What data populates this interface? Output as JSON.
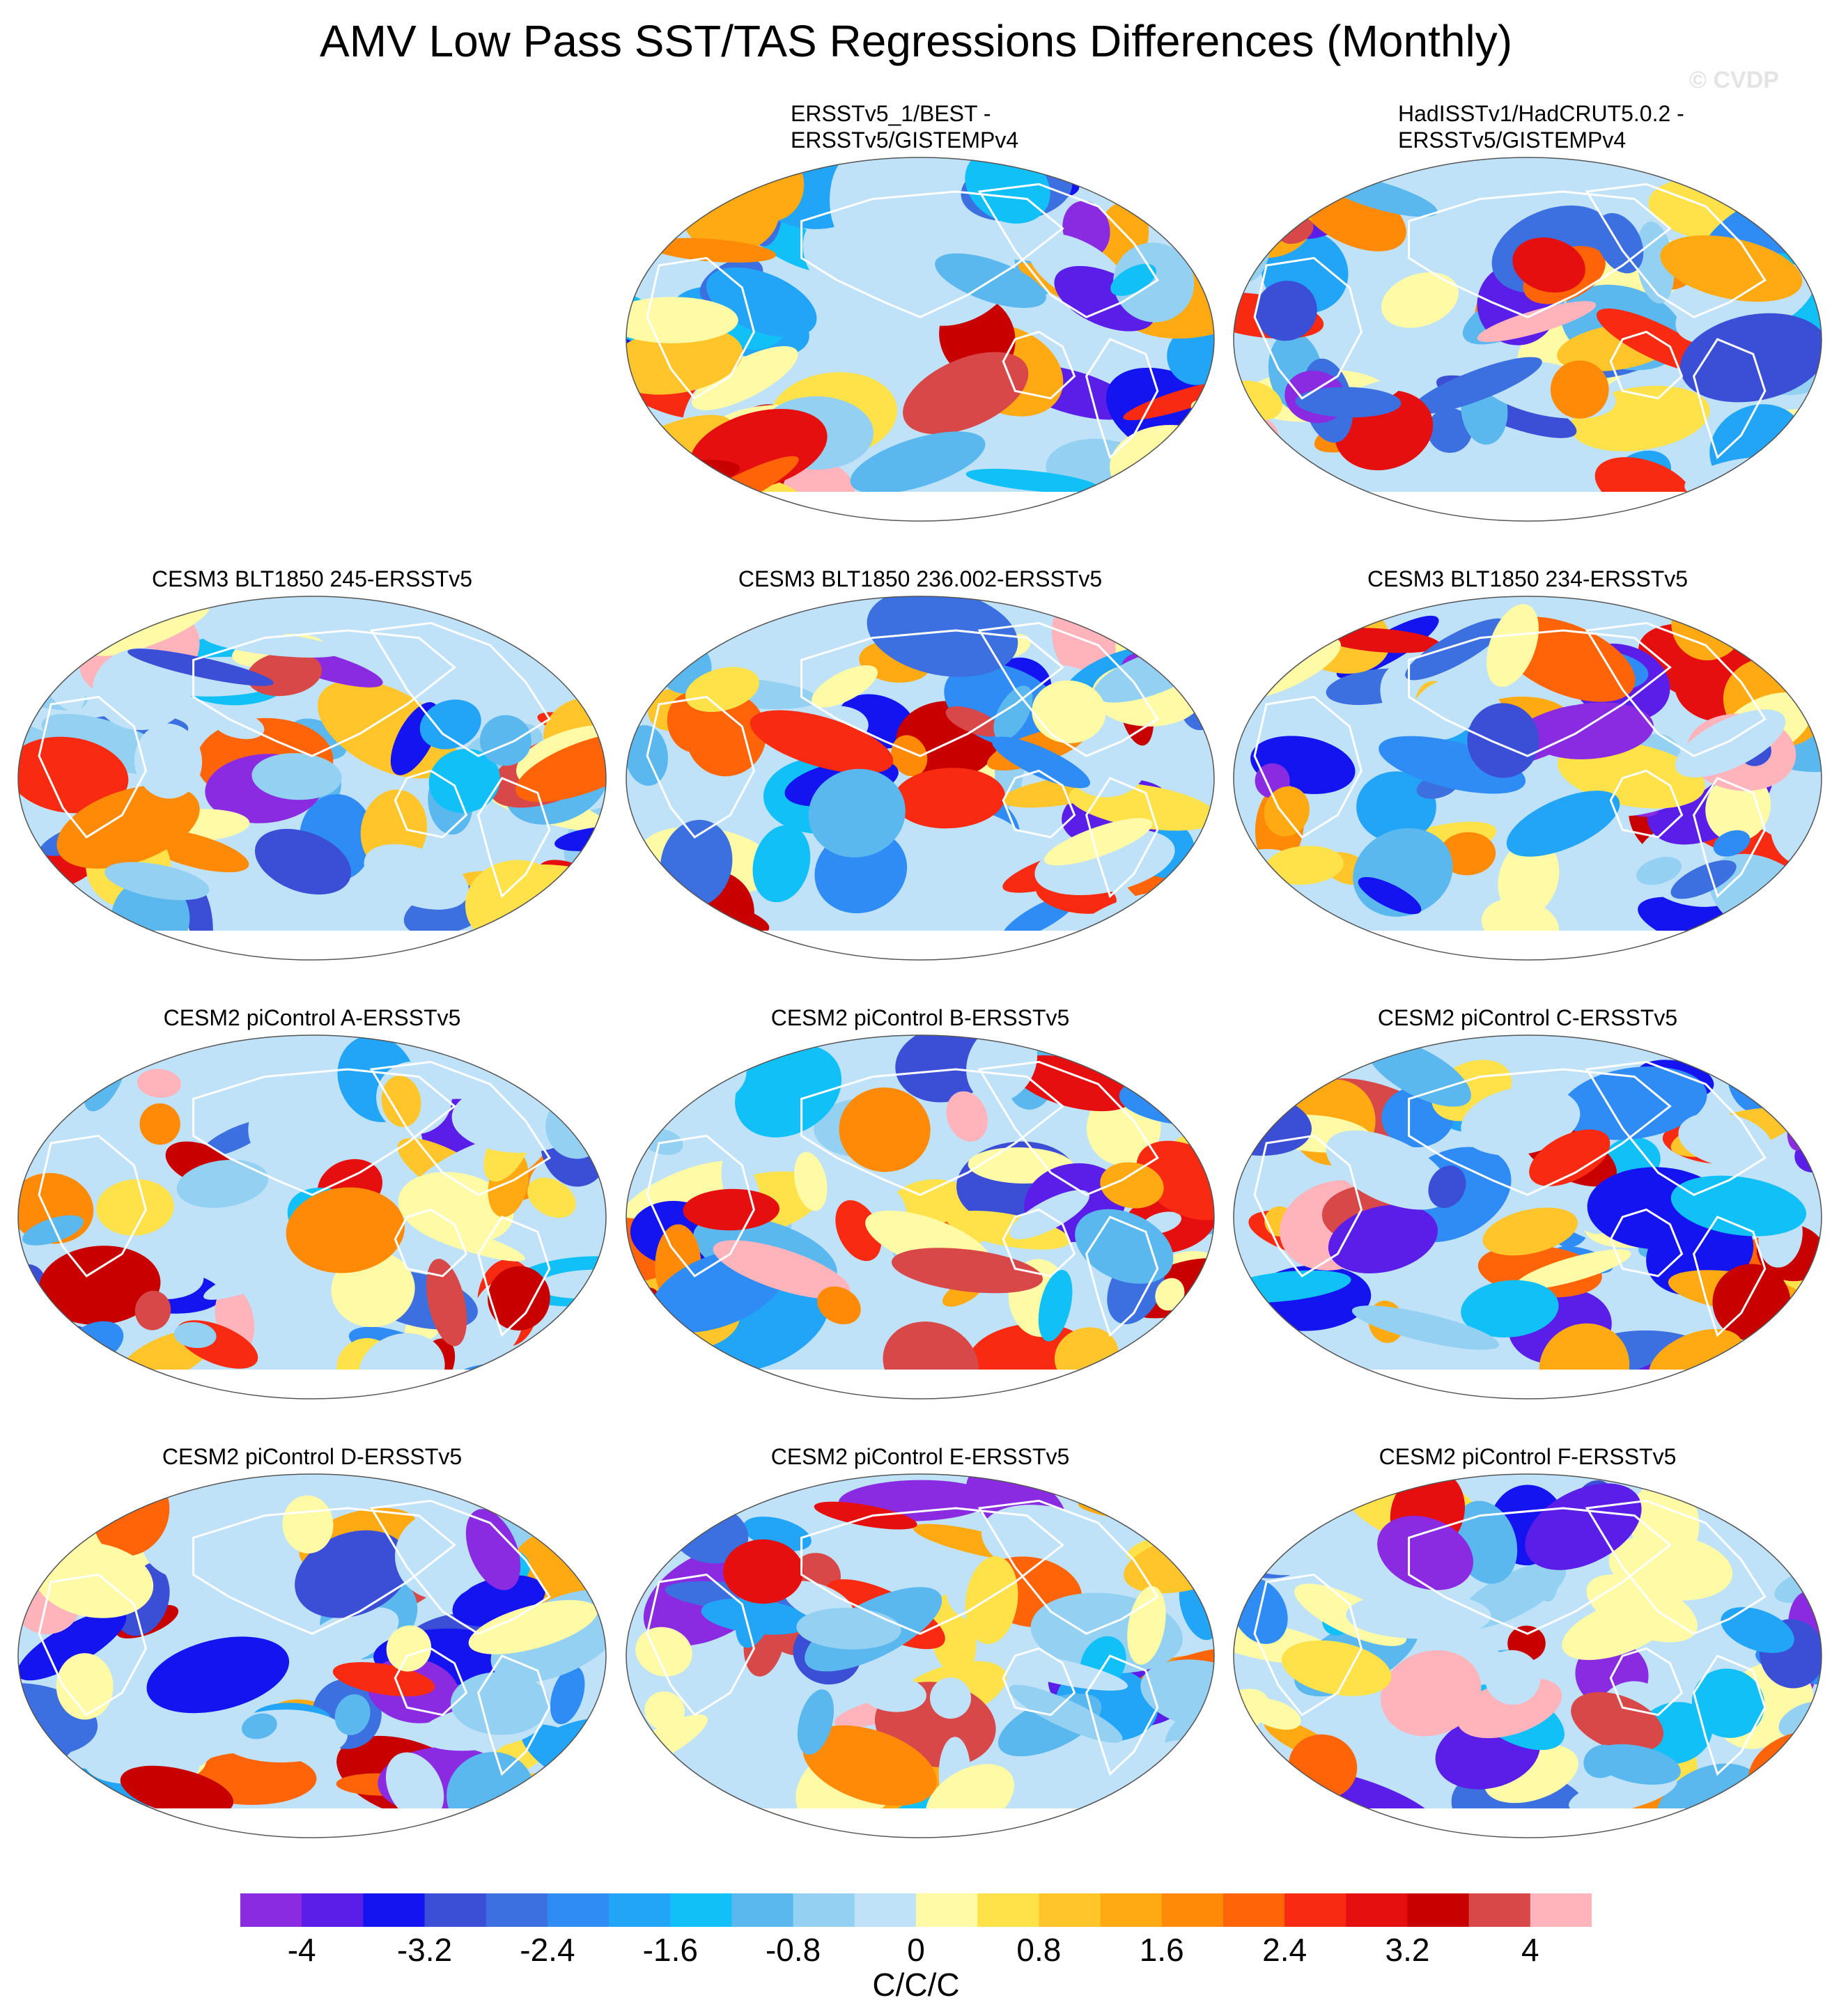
{
  "header": {
    "title": "AMV Low Pass SST/TAS Regressions Differences (Monthly)",
    "watermark": "© CVDP"
  },
  "chart_data": {
    "type": "heatmap",
    "projection": "robinson global map",
    "legend_position": "bottom",
    "panels": [
      {
        "title_lines": [
          "ERSSTv5_1/BEST -",
          "ERSSTv5/GISTEMPv4"
        ]
      },
      {
        "title_lines": [
          "HadISSTv1/HadCRUT5.0.2 -",
          "ERSSTv5/GISTEMPv4"
        ]
      },
      {
        "title_lines": [
          "CESM3 BLT1850 245-ERSSTv5"
        ]
      },
      {
        "title_lines": [
          "CESM3 BLT1850 236.002-ERSSTv5"
        ]
      },
      {
        "title_lines": [
          "CESM3 BLT1850 234-ERSSTv5"
        ]
      },
      {
        "title_lines": [
          "CESM2 piControl A-ERSSTv5"
        ]
      },
      {
        "title_lines": [
          "CESM2 piControl B-ERSSTv5"
        ]
      },
      {
        "title_lines": [
          "CESM2 piControl C-ERSSTv5"
        ]
      },
      {
        "title_lines": [
          "CESM2 piControl D-ERSSTv5"
        ]
      },
      {
        "title_lines": [
          "CESM2 piControl E-ERSSTv5"
        ]
      },
      {
        "title_lines": [
          "CESM2 piControl F-ERSSTv5"
        ]
      }
    ],
    "colorbar": {
      "units": "C/C/C",
      "range": [
        -4.4,
        4.4
      ],
      "bin_width": 0.4,
      "tick_labels": [
        "-4",
        "-3.2",
        "-2.4",
        "-1.6",
        "-0.8",
        "0",
        "0.8",
        "1.6",
        "2.4",
        "3.2",
        "4"
      ],
      "colors": [
        "#8a2be2",
        "#5a1ee8",
        "#1414f0",
        "#3a4fd6",
        "#3c6fe0",
        "#2f8cf5",
        "#22a4f7",
        "#12c0f8",
        "#5ab8ee",
        "#93d0f2",
        "#bfe2f8",
        "#fffaa6",
        "#ffe14a",
        "#ffc52a",
        "#ffaa12",
        "#ff8a08",
        "#ff6408",
        "#f82a12",
        "#e60f0f",
        "#c80000",
        "#d84848",
        "#ffb4bc"
      ]
    }
  }
}
